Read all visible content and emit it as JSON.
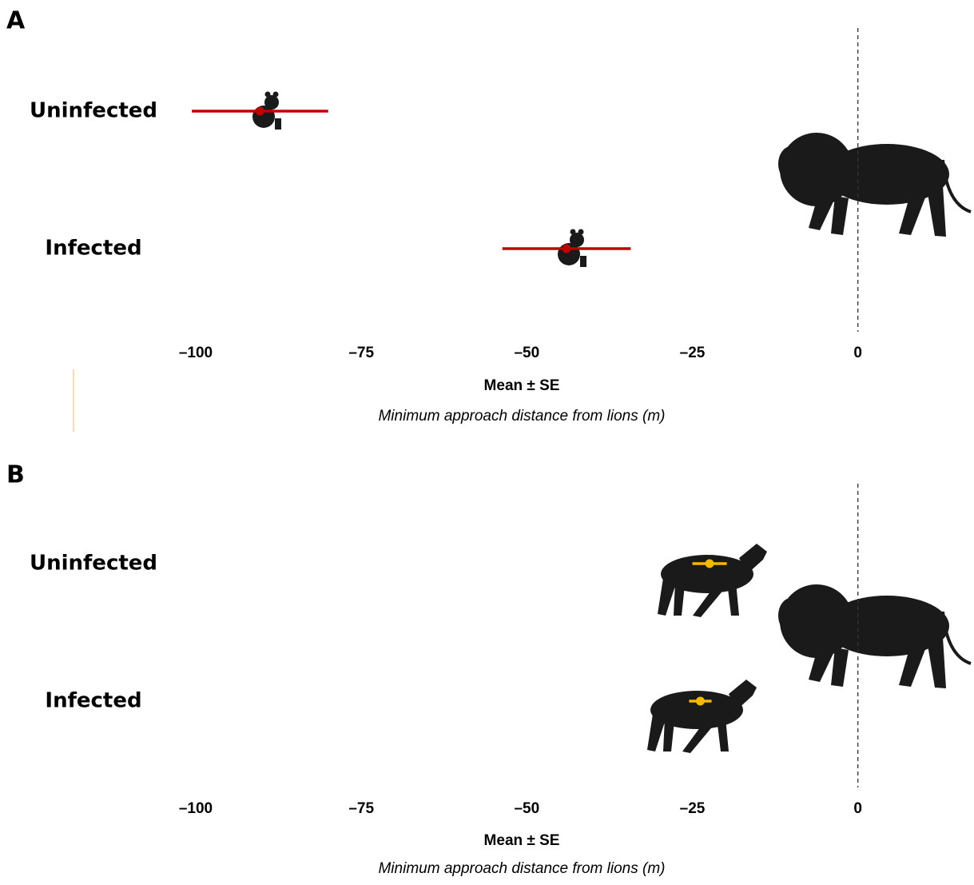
{
  "chart_data": [
    {
      "type": "errorbar",
      "panel": "A",
      "categories": [
        "Uninfected",
        "Infected"
      ],
      "values": [
        -90.3,
        -44.0
      ],
      "errors": [
        10.3,
        9.7
      ],
      "color": "#c00000",
      "xlim": [
        -100,
        15
      ],
      "xticks": [
        {
          "value": -100,
          "label": "–100"
        },
        {
          "value": -75,
          "label": "–75"
        },
        {
          "value": -50,
          "label": "–50"
        },
        {
          "value": -25,
          "label": "–25"
        },
        0
      ],
      "vline": 0,
      "xlabel": "Mean ± SE",
      "subtitle": "Minimum approach distance from lions (m)"
    },
    {
      "type": "errorbar",
      "panel": "B",
      "categories": [
        "Uninfected",
        "Infected"
      ],
      "values": [
        -22.4,
        -23.8
      ],
      "errors": [
        2.6,
        1.7
      ],
      "color": "#f5b800",
      "xlim": [
        -100,
        15
      ],
      "xticks": [
        {
          "value": -100,
          "label": "–100"
        },
        {
          "value": -75,
          "label": "–75"
        },
        {
          "value": -50,
          "label": "–50"
        },
        {
          "value": -25,
          "label": "–25"
        },
        0
      ],
      "vline": 0,
      "xlabel": "Mean ± SE",
      "subtitle": "Minimum approach distance from lions (m)"
    }
  ]
}
